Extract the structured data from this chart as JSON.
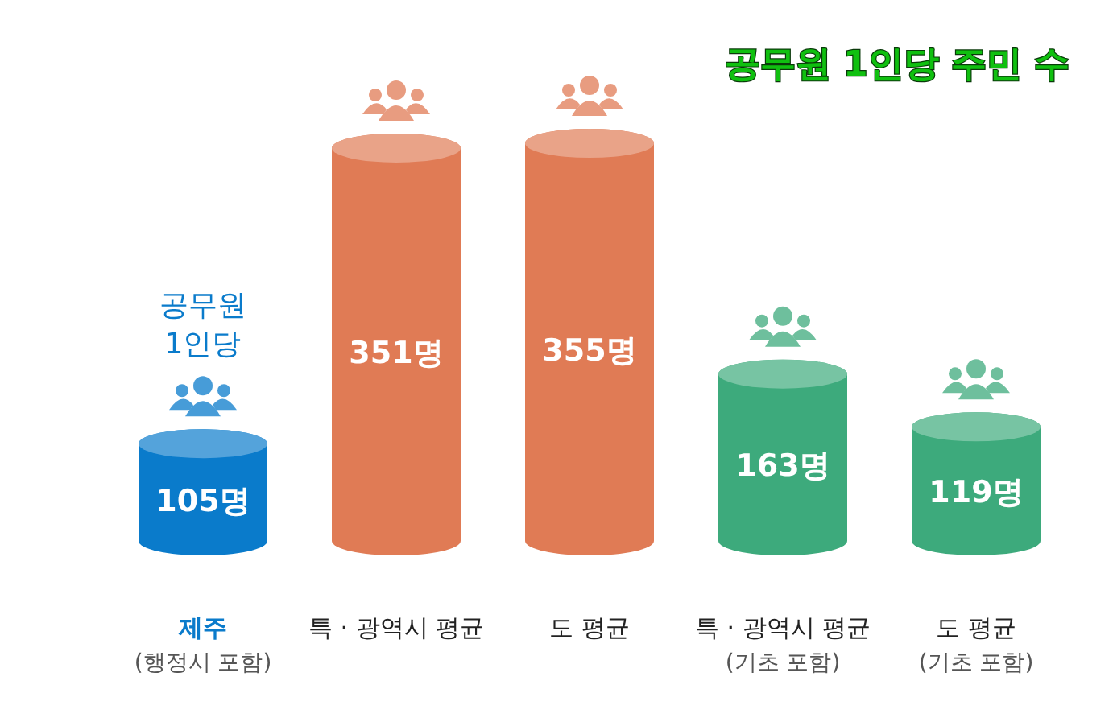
{
  "chart_data": {
    "type": "bar",
    "title": "공무원 1인당 주민 수",
    "categories": [
      "제주\n(행정시 포함)",
      "특 · 광역시 평균",
      "도 평균",
      "특 · 광역시 평균\n(기초 포함)",
      "도 평균\n(기초 포함)"
    ],
    "values": [
      105,
      351,
      355,
      163,
      119
    ],
    "colors": [
      "#0a7bcb",
      "#e07b55",
      "#e07b55",
      "#3daa7c",
      "#3daa7c"
    ],
    "value_labels": [
      "105명",
      "351명",
      "355명",
      "163명",
      "119명"
    ],
    "annotations": [
      "공무원\n1인당"
    ]
  }
}
